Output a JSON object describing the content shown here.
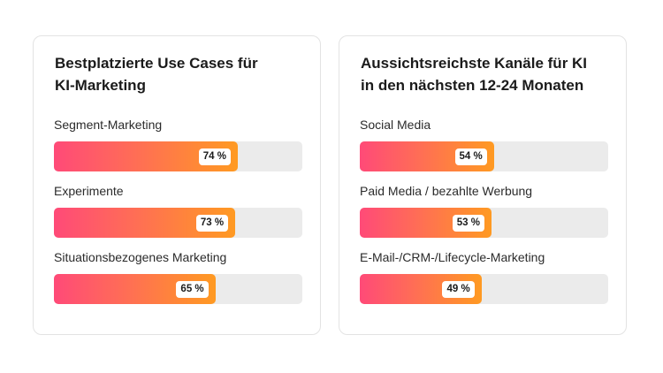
{
  "chart_data": [
    {
      "type": "bar",
      "orientation": "horizontal",
      "title_lines": [
        "Bestplatzierte Use Cases für",
        "KI-Marketing"
      ],
      "categories": [
        "Segment-Marketing",
        "Experimente",
        "Situationsbezogenes Marketing"
      ],
      "values": [
        74,
        73,
        65
      ],
      "value_labels": [
        "74 %",
        "73 %",
        "65 %"
      ],
      "xlim": [
        0,
        100
      ],
      "grid": false
    },
    {
      "type": "bar",
      "orientation": "horizontal",
      "title_lines": [
        "Aussichtsreichste Kanäle für KI",
        "in den nächsten 12-24 Monaten"
      ],
      "categories": [
        "Social Media",
        "Paid Media / bezahlte Werbung",
        "E-Mail-/CRM-/Lifecycle-Marketing"
      ],
      "values": [
        54,
        53,
        49
      ],
      "value_labels": [
        "54 %",
        "53 %",
        "49 %"
      ],
      "xlim": [
        0,
        100
      ],
      "grid": false
    }
  ],
  "colors": {
    "bar_gradient_start": "#ff4a78",
    "bar_gradient_end": "#ff9a22",
    "track": "#ebebeb",
    "card_border": "#e3e3e3"
  }
}
